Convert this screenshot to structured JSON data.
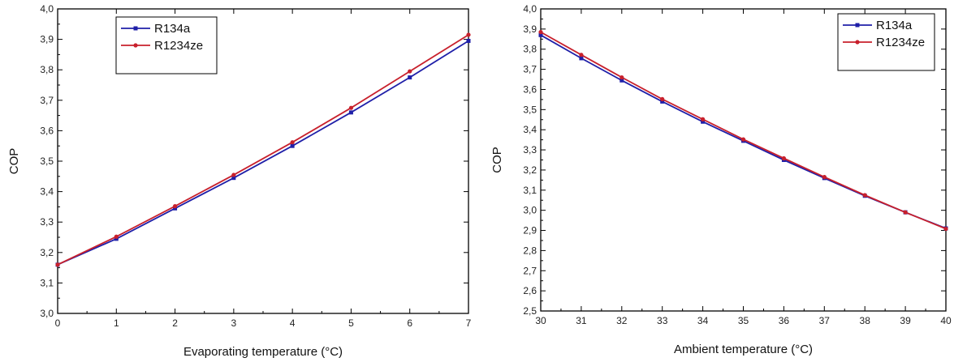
{
  "chart_data": [
    {
      "type": "line",
      "title": "",
      "xlabel": "Evaporating temperature (°C)",
      "ylabel": "COP",
      "xlim": [
        0,
        7
      ],
      "ylim": [
        3.0,
        4.0
      ],
      "x_ticks": [
        0,
        1,
        2,
        3,
        4,
        5,
        6,
        7
      ],
      "x_tick_labels": [
        "0",
        "1",
        "2",
        "3",
        "4",
        "5",
        "6",
        "7"
      ],
      "y_ticks": [
        3.0,
        3.1,
        3.2,
        3.3,
        3.4,
        3.5,
        3.6,
        3.7,
        3.8,
        3.9,
        4.0
      ],
      "y_tick_labels": [
        "3,0",
        "3,1",
        "3,2",
        "3,3",
        "3,4",
        "3,5",
        "3,6",
        "3,7",
        "3,8",
        "3,9",
        "4,0"
      ],
      "x": [
        0,
        1,
        2,
        3,
        4,
        5,
        6,
        7
      ],
      "series": [
        {
          "name": "R134a",
          "color": "#1f1fa8",
          "marker": "square",
          "values": [
            3.16,
            3.245,
            3.345,
            3.445,
            3.55,
            3.66,
            3.775,
            3.895
          ]
        },
        {
          "name": "R1234ze",
          "color": "#c8202c",
          "marker": "circle",
          "values": [
            3.16,
            3.252,
            3.352,
            3.455,
            3.562,
            3.675,
            3.795,
            3.915
          ]
        }
      ],
      "legend": "top-left",
      "grid": false
    },
    {
      "type": "line",
      "title": "",
      "xlabel": "Ambient temperature (°C)",
      "ylabel": "COP",
      "xlim": [
        30,
        40
      ],
      "ylim": [
        2.5,
        4.0
      ],
      "x_ticks": [
        30,
        31,
        32,
        33,
        34,
        35,
        36,
        37,
        38,
        39,
        40
      ],
      "x_tick_labels": [
        "30",
        "31",
        "32",
        "33",
        "34",
        "35",
        "36",
        "37",
        "38",
        "39",
        "40"
      ],
      "y_ticks": [
        2.5,
        2.6,
        2.7,
        2.8,
        2.9,
        3.0,
        3.1,
        3.2,
        3.3,
        3.4,
        3.5,
        3.6,
        3.7,
        3.8,
        3.9,
        4.0
      ],
      "y_tick_labels": [
        "2,5",
        "2,6",
        "2,7",
        "2,8",
        "2,9",
        "3,0",
        "3,1",
        "3,2",
        "3,3",
        "3,4",
        "3,5",
        "3,6",
        "3,7",
        "3,8",
        "3,9",
        "4,0"
      ],
      "x": [
        30,
        31,
        32,
        33,
        34,
        35,
        36,
        37,
        38,
        39,
        40
      ],
      "series": [
        {
          "name": "R134a",
          "color": "#1f1fa8",
          "marker": "square",
          "values": [
            3.87,
            3.755,
            3.645,
            3.54,
            3.44,
            3.345,
            3.25,
            3.16,
            3.072,
            2.99,
            2.91
          ]
        },
        {
          "name": "R1234ze",
          "color": "#c8202c",
          "marker": "circle",
          "values": [
            3.885,
            3.772,
            3.66,
            3.552,
            3.452,
            3.352,
            3.258,
            3.165,
            3.075,
            2.99,
            2.908
          ]
        }
      ],
      "legend": "top-right",
      "grid": false
    }
  ]
}
